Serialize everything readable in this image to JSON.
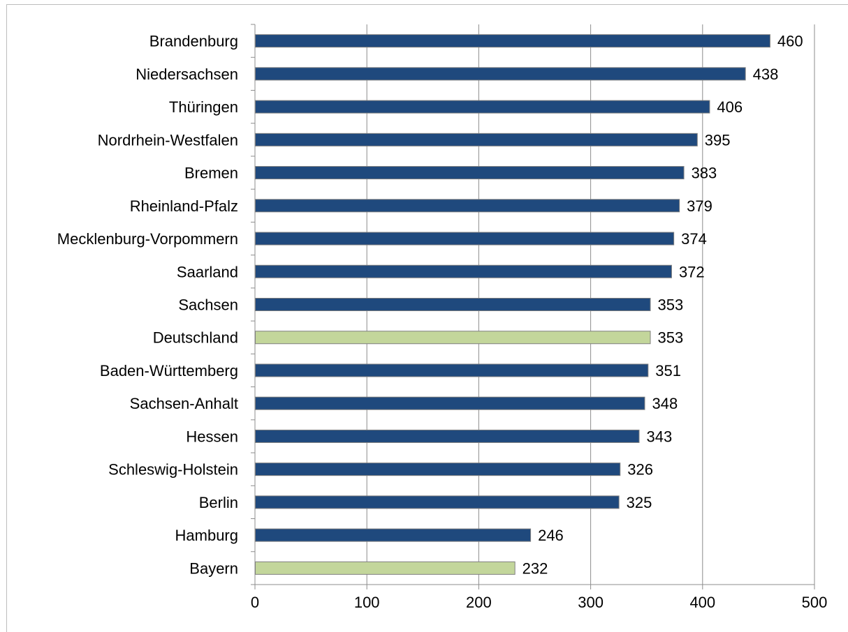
{
  "chart_data": {
    "type": "bar",
    "orientation": "horizontal",
    "categories": [
      "Brandenburg",
      "Niedersachsen",
      "Thüringen",
      "Nordrhein-Westfalen",
      "Bremen",
      "Rheinland-Pfalz",
      "Mecklenburg-Vorpommern",
      "Saarland",
      "Sachsen",
      "Deutschland",
      "Baden-Württemberg",
      "Sachsen-Anhalt",
      "Hessen",
      "Schleswig-Holstein",
      "Berlin",
      "Hamburg",
      "Bayern"
    ],
    "values": [
      460,
      438,
      406,
      395,
      383,
      379,
      374,
      372,
      353,
      353,
      351,
      348,
      343,
      326,
      325,
      246,
      232
    ],
    "data_labels": [
      "460",
      "438",
      "406",
      "395",
      "383",
      "379",
      "374",
      "372",
      "353",
      "353",
      "351",
      "348",
      "343",
      "326",
      "325",
      "246",
      "232"
    ],
    "highlighted": [
      "Deutschland",
      "Bayern"
    ],
    "colors": {
      "default_fill": "#1f497d",
      "highlight_fill": "#c3d69b",
      "bar_stroke": "#7f7f7f",
      "grid": "#8c8c8c",
      "axis": "#8c8c8c"
    },
    "xlim": [
      0,
      500
    ],
    "x_ticks": [
      0,
      100,
      200,
      300,
      400,
      500
    ],
    "x_tick_labels": [
      "0",
      "100",
      "200",
      "300",
      "400",
      "500"
    ],
    "grid": true,
    "legend": "none",
    "title": "",
    "xlabel": "",
    "ylabel": ""
  }
}
